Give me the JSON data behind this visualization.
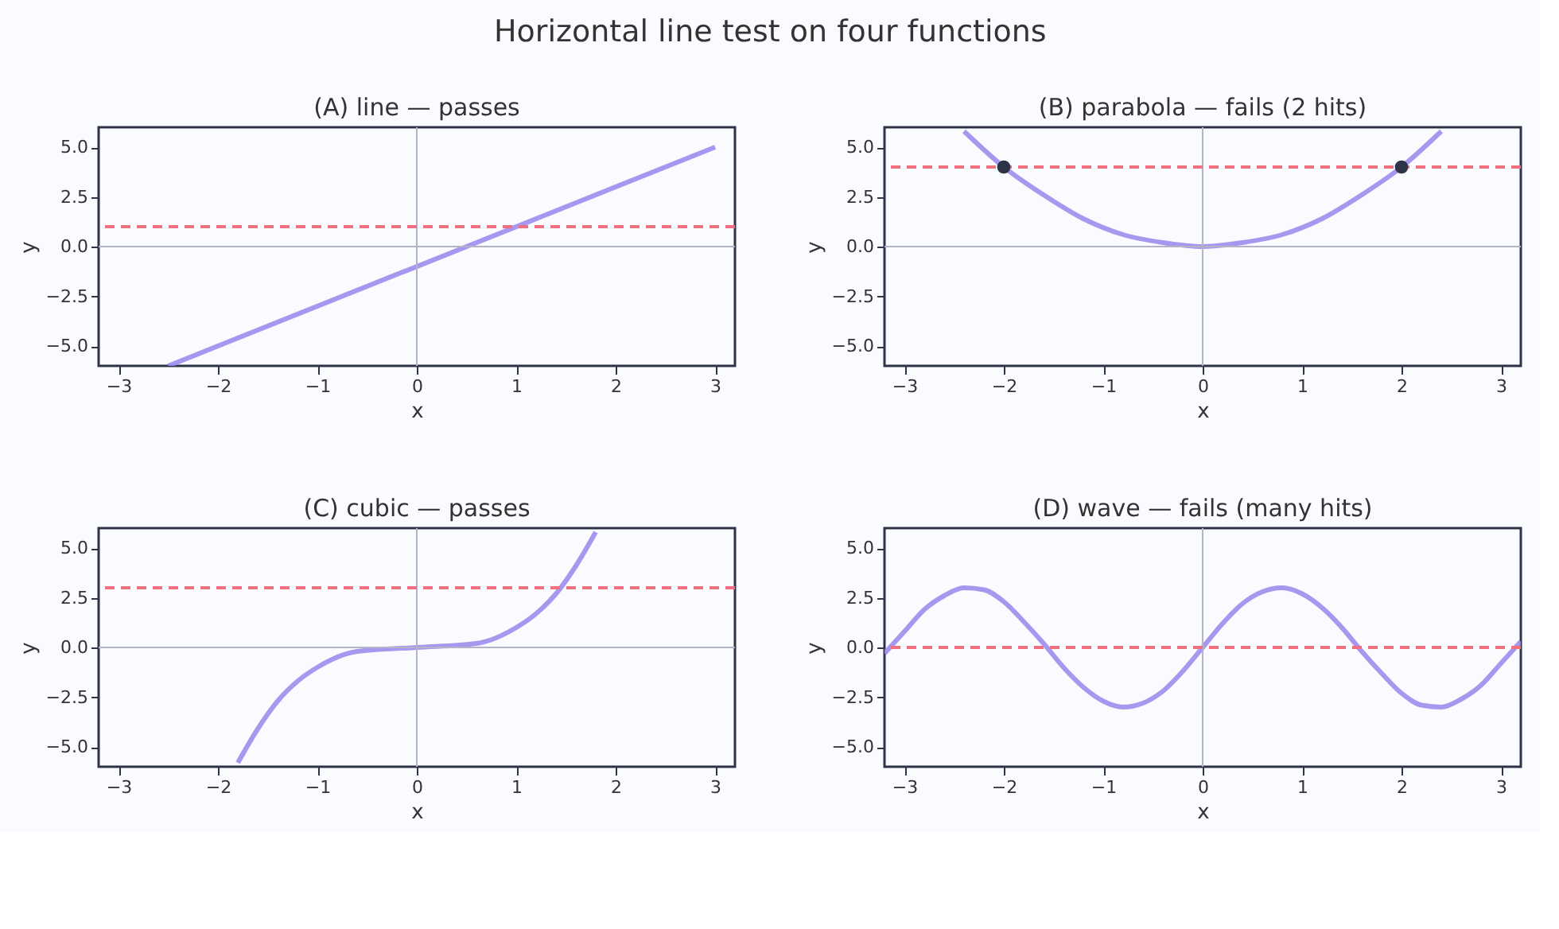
{
  "chart_data": [
    {
      "type": "other",
      "title": "Horizontal line test on four functions"
    },
    {
      "type": "line",
      "title": "(A) line — passes",
      "xlabel": "x",
      "ylabel": "y",
      "xlim": [
        -3.2,
        3.2
      ],
      "ylim": [
        -6,
        6
      ],
      "grid": false,
      "marker": "none",
      "line_style": "solid",
      "xticks": [
        {
          "value": -3,
          "label": "−3"
        },
        {
          "value": -2,
          "label": "−2"
        },
        {
          "value": -1,
          "label": "−1"
        },
        0,
        1,
        2,
        3
      ],
      "yticks": [
        {
          "value": -5,
          "label": "−5.0"
        },
        {
          "value": -2.5,
          "label": "−2.5"
        },
        {
          "value": 0,
          "label": "0.0"
        },
        {
          "value": 2.5,
          "label": "2.5"
        },
        {
          "value": 5,
          "label": "5.0"
        }
      ],
      "series": [
        {
          "color": "#9d8cec",
          "x": [
            -2.5,
            3
          ],
          "values": [
            -6,
            5
          ]
        }
      ],
      "ref_lines": [
        {
          "axis": "x",
          "value": 0,
          "color": "#b4b4c8",
          "line_style": "solid"
        },
        {
          "axis": "y",
          "value": 0,
          "color": "#b4b4c8",
          "line_style": "solid"
        },
        {
          "axis": "y",
          "value": 1,
          "color": "#f07080",
          "line_style": "dashed"
        }
      ]
    },
    {
      "type": "line",
      "title": "(B) parabola — fails (2 hits)",
      "xlabel": "x",
      "ylabel": "y",
      "xlim": [
        -3.2,
        3.2
      ],
      "ylim": [
        -6,
        6
      ],
      "grid": false,
      "marker": "none",
      "line_style": "solid",
      "xticks": [
        {
          "value": -3,
          "label": "−3"
        },
        {
          "value": -2,
          "label": "−2"
        },
        {
          "value": -1,
          "label": "−1"
        },
        0,
        1,
        2,
        3
      ],
      "yticks": [
        {
          "value": -5,
          "label": "−5.0"
        },
        {
          "value": -2.5,
          "label": "−2.5"
        },
        {
          "value": 0,
          "label": "0.0"
        },
        {
          "value": 2.5,
          "label": "2.5"
        },
        {
          "value": 5,
          "label": "5.0"
        }
      ],
      "series": [
        {
          "color": "#9d8cec",
          "x": [
            -2.4,
            -2,
            -1.6,
            -1.2,
            -0.8,
            -0.4,
            0,
            0.4,
            0.8,
            1.2,
            1.6,
            2,
            2.4
          ],
          "values": [
            5.8,
            4,
            2.6,
            1.4,
            0.6,
            0.2,
            0,
            0.2,
            0.6,
            1.4,
            2.6,
            4,
            5.8
          ]
        },
        {
          "type": "scatter",
          "marker": "circle",
          "color": "#2d3447",
          "x": [
            -2,
            2
          ],
          "values": [
            4,
            4
          ]
        }
      ],
      "ref_lines": [
        {
          "axis": "x",
          "value": 0,
          "color": "#b4b4c8",
          "line_style": "solid"
        },
        {
          "axis": "y",
          "value": 0,
          "color": "#b4b4c8",
          "line_style": "solid"
        },
        {
          "axis": "y",
          "value": 4,
          "color": "#f07080",
          "line_style": "dashed"
        }
      ]
    },
    {
      "type": "line",
      "title": "(C) cubic — passes",
      "xlabel": "x",
      "ylabel": "y",
      "xlim": [
        -3.2,
        3.2
      ],
      "ylim": [
        -6,
        6
      ],
      "grid": false,
      "marker": "none",
      "line_style": "solid",
      "xticks": [
        {
          "value": -3,
          "label": "−3"
        },
        {
          "value": -2,
          "label": "−2"
        },
        {
          "value": -1,
          "label": "−1"
        },
        0,
        1,
        2,
        3
      ],
      "yticks": [
        {
          "value": -5,
          "label": "−5.0"
        },
        {
          "value": -2.5,
          "label": "−2.5"
        },
        {
          "value": 0,
          "label": "0.0"
        },
        {
          "value": 2.5,
          "label": "2.5"
        },
        {
          "value": 5,
          "label": "5.0"
        }
      ],
      "series": [
        {
          "color": "#9d8cec",
          "x": [
            -1.8,
            -1.6,
            -1.4,
            -1.2,
            -1,
            -0.6,
            0,
            0.6,
            1,
            1.2,
            1.4,
            1.6,
            1.8
          ],
          "values": [
            -5.8,
            -4.1,
            -2.7,
            -1.7,
            -1,
            -0.2,
            0,
            0.2,
            1,
            1.7,
            2.7,
            4.1,
            5.8
          ]
        }
      ],
      "ref_lines": [
        {
          "axis": "x",
          "value": 0,
          "color": "#b4b4c8",
          "line_style": "solid"
        },
        {
          "axis": "y",
          "value": 0,
          "color": "#b4b4c8",
          "line_style": "solid"
        },
        {
          "axis": "y",
          "value": 3,
          "color": "#f07080",
          "line_style": "dashed"
        }
      ]
    },
    {
      "type": "line",
      "title": "(D) wave — fails (many hits)",
      "xlabel": "x",
      "ylabel": "y",
      "xlim": [
        -3.2,
        3.2
      ],
      "ylim": [
        -6,
        6
      ],
      "grid": false,
      "marker": "none",
      "line_style": "solid",
      "xticks": [
        {
          "value": -3,
          "label": "−3"
        },
        {
          "value": -2,
          "label": "−2"
        },
        {
          "value": -1,
          "label": "−1"
        },
        0,
        1,
        2,
        3
      ],
      "yticks": [
        {
          "value": -5,
          "label": "−5.0"
        },
        {
          "value": -2.5,
          "label": "−2.5"
        },
        {
          "value": 0,
          "label": "0.0"
        },
        {
          "value": 2.5,
          "label": "2.5"
        },
        {
          "value": 5,
          "label": "5.0"
        }
      ],
      "series": [
        {
          "color": "#9d8cec",
          "x": [
            -3.2,
            -3,
            -2.8,
            -2.6,
            -2.4,
            -2.2,
            -2,
            -1.8,
            -1.6,
            -1.4,
            -1.2,
            -1,
            -0.8,
            -0.6,
            -0.4,
            -0.2,
            0,
            0.2,
            0.4,
            0.6,
            0.8,
            1,
            1.2,
            1.4,
            1.6,
            1.8,
            2,
            2.2,
            2.4,
            2.6,
            2.8,
            3,
            3.2
          ],
          "values": [
            -0.3,
            0.8,
            1.9,
            2.6,
            3,
            2.9,
            2.3,
            1.3,
            0.2,
            -1,
            -2,
            -2.7,
            -3,
            -2.8,
            -2.2,
            -1.2,
            0,
            1.2,
            2.2,
            2.8,
            3,
            2.7,
            2,
            1,
            -0.2,
            -1.3,
            -2.3,
            -2.9,
            -3,
            -2.6,
            -1.9,
            -0.8,
            0.3
          ]
        }
      ],
      "ref_lines": [
        {
          "axis": "x",
          "value": 0,
          "color": "#b4b4c8",
          "line_style": "solid"
        },
        {
          "axis": "y",
          "value": 0,
          "color": "#f07080",
          "line_style": "dashed"
        }
      ]
    }
  ]
}
